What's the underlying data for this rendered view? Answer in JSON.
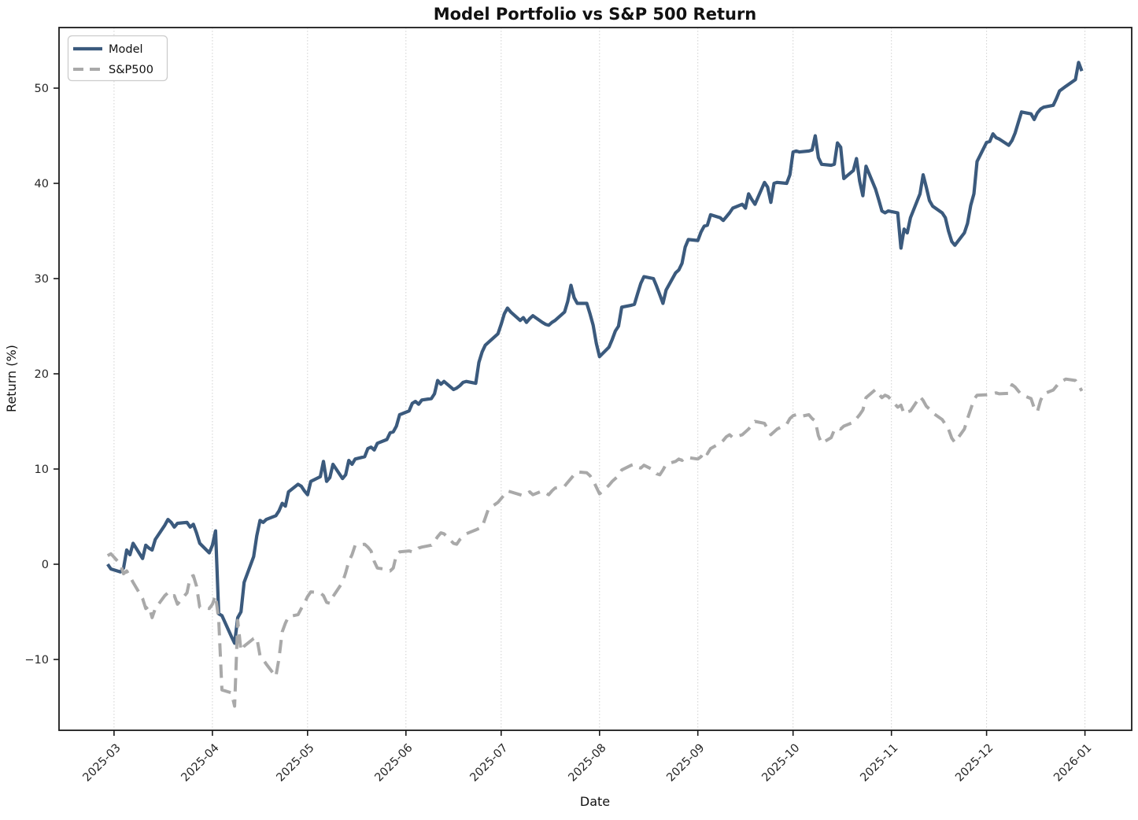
{
  "chart_data": {
    "type": "line",
    "title": "Model Portfolio vs S&P 500 Return",
    "xlabel": "Date",
    "ylabel": "Return (%)",
    "grid": "vertical-only",
    "legend_position": "upper left",
    "ylim": [
      -17.4,
      56.4
    ],
    "xlim": [
      "2025-02-12",
      "2026-01-15"
    ],
    "y_ticks": [
      {
        "label": "−10",
        "value": -10
      },
      {
        "label": "0",
        "value": 0
      },
      {
        "label": "10",
        "value": 10
      },
      {
        "label": "20",
        "value": 20
      },
      {
        "label": "30",
        "value": 30
      },
      {
        "label": "40",
        "value": 40
      },
      {
        "label": "50",
        "value": 50
      }
    ],
    "x_ticks": [
      {
        "label": "2025-03",
        "date": "2025-03-01"
      },
      {
        "label": "2025-04",
        "date": "2025-04-01"
      },
      {
        "label": "2025-05",
        "date": "2025-05-01"
      },
      {
        "label": "2025-06",
        "date": "2025-06-01"
      },
      {
        "label": "2025-07",
        "date": "2025-07-01"
      },
      {
        "label": "2025-08",
        "date": "2025-08-01"
      },
      {
        "label": "2025-09",
        "date": "2025-09-01"
      },
      {
        "label": "2025-10",
        "date": "2025-10-01"
      },
      {
        "label": "2025-11",
        "date": "2025-11-01"
      },
      {
        "label": "2025-12",
        "date": "2025-12-01"
      },
      {
        "label": "2026-01",
        "date": "2026-01-01"
      }
    ],
    "dates": [
      "2025-02-27",
      "2025-02-28",
      "2025-03-03",
      "2025-03-04",
      "2025-03-05",
      "2025-03-06",
      "2025-03-07",
      "2025-03-10",
      "2025-03-11",
      "2025-03-12",
      "2025-03-13",
      "2025-03-14",
      "2025-03-17",
      "2025-03-18",
      "2025-03-19",
      "2025-03-20",
      "2025-03-21",
      "2025-03-24",
      "2025-03-25",
      "2025-03-26",
      "2025-03-27",
      "2025-03-28",
      "2025-03-31",
      "2025-04-01",
      "2025-04-02",
      "2025-04-03",
      "2025-04-04",
      "2025-04-07",
      "2025-04-08",
      "2025-04-09",
      "2025-04-10",
      "2025-04-11",
      "2025-04-14",
      "2025-04-15",
      "2025-04-16",
      "2025-04-17",
      "2025-04-18",
      "2025-04-21",
      "2025-04-22",
      "2025-04-23",
      "2025-04-24",
      "2025-04-25",
      "2025-04-28",
      "2025-04-29",
      "2025-04-30",
      "2025-05-01",
      "2025-05-02",
      "2025-05-05",
      "2025-05-06",
      "2025-05-07",
      "2025-05-08",
      "2025-05-09",
      "2025-05-12",
      "2025-05-13",
      "2025-05-14",
      "2025-05-15",
      "2025-05-16",
      "2025-05-19",
      "2025-05-20",
      "2025-05-21",
      "2025-05-22",
      "2025-05-23",
      "2025-05-26",
      "2025-05-27",
      "2025-05-28",
      "2025-05-29",
      "2025-05-30",
      "2025-06-02",
      "2025-06-03",
      "2025-06-04",
      "2025-06-05",
      "2025-06-06",
      "2025-06-09",
      "2025-06-10",
      "2025-06-11",
      "2025-06-12",
      "2025-06-13",
      "2025-06-16",
      "2025-06-17",
      "2025-06-18",
      "2025-06-19",
      "2025-06-20",
      "2025-06-23",
      "2025-06-24",
      "2025-06-25",
      "2025-06-26",
      "2025-06-27",
      "2025-06-30",
      "2025-07-01",
      "2025-07-02",
      "2025-07-03",
      "2025-07-04",
      "2025-07-07",
      "2025-07-08",
      "2025-07-09",
      "2025-07-10",
      "2025-07-11",
      "2025-07-14",
      "2025-07-15",
      "2025-07-16",
      "2025-07-17",
      "2025-07-18",
      "2025-07-21",
      "2025-07-22",
      "2025-07-23",
      "2025-07-24",
      "2025-07-25",
      "2025-07-28",
      "2025-07-29",
      "2025-07-30",
      "2025-07-31",
      "2025-08-01",
      "2025-08-04",
      "2025-08-05",
      "2025-08-06",
      "2025-08-07",
      "2025-08-08",
      "2025-08-11",
      "2025-08-12",
      "2025-08-13",
      "2025-08-14",
      "2025-08-15",
      "2025-08-18",
      "2025-08-19",
      "2025-08-20",
      "2025-08-21",
      "2025-08-22",
      "2025-08-25",
      "2025-08-26",
      "2025-08-27",
      "2025-08-28",
      "2025-08-29",
      "2025-09-01",
      "2025-09-02",
      "2025-09-03",
      "2025-09-04",
      "2025-09-05",
      "2025-09-08",
      "2025-09-09",
      "2025-09-10",
      "2025-09-11",
      "2025-09-12",
      "2025-09-15",
      "2025-09-16",
      "2025-09-17",
      "2025-09-18",
      "2025-09-19",
      "2025-09-22",
      "2025-09-23",
      "2025-09-24",
      "2025-09-25",
      "2025-09-26",
      "2025-09-29",
      "2025-09-30",
      "2025-10-01",
      "2025-10-02",
      "2025-10-03",
      "2025-10-06",
      "2025-10-07",
      "2025-10-08",
      "2025-10-09",
      "2025-10-10",
      "2025-10-13",
      "2025-10-14",
      "2025-10-15",
      "2025-10-16",
      "2025-10-17",
      "2025-10-20",
      "2025-10-21",
      "2025-10-22",
      "2025-10-23",
      "2025-10-24",
      "2025-10-27",
      "2025-10-28",
      "2025-10-29",
      "2025-10-30",
      "2025-10-31",
      "2025-11-03",
      "2025-11-04",
      "2025-11-05",
      "2025-11-06",
      "2025-11-07",
      "2025-11-10",
      "2025-11-11",
      "2025-11-12",
      "2025-11-13",
      "2025-11-14",
      "2025-11-17",
      "2025-11-18",
      "2025-11-19",
      "2025-11-20",
      "2025-11-21",
      "2025-11-24",
      "2025-11-25",
      "2025-11-26",
      "2025-11-27",
      "2025-11-28",
      "2025-12-01",
      "2025-12-02",
      "2025-12-03",
      "2025-12-04",
      "2025-12-05",
      "2025-12-08",
      "2025-12-09",
      "2025-12-10",
      "2025-12-11",
      "2025-12-12",
      "2025-12-15",
      "2025-12-16",
      "2025-12-17",
      "2025-12-18",
      "2025-12-19",
      "2025-12-22",
      "2025-12-23",
      "2025-12-24",
      "2025-12-26",
      "2025-12-29",
      "2025-12-30",
      "2025-12-31"
    ],
    "series": [
      {
        "name": "Model",
        "color": "#3b5a7d",
        "style": "solid",
        "linewidth": 4.2,
        "values": [
          0.0,
          -0.5,
          -0.8,
          -0.4,
          1.5,
          1.0,
          2.2,
          0.6,
          2.0,
          1.7,
          1.5,
          2.6,
          4.1,
          4.7,
          4.4,
          3.9,
          4.3,
          4.4,
          3.9,
          4.2,
          3.3,
          2.2,
          1.2,
          2.0,
          3.5,
          -5.2,
          -5.4,
          -7.6,
          -8.3,
          -5.6,
          -5.0,
          -1.9,
          0.8,
          3.0,
          4.6,
          4.4,
          4.7,
          5.1,
          5.6,
          6.4,
          6.1,
          7.6,
          8.4,
          8.2,
          7.7,
          7.3,
          8.7,
          9.2,
          10.8,
          8.7,
          9.1,
          10.5,
          9.0,
          9.4,
          10.9,
          10.5,
          11.05,
          11.3,
          12.15,
          12.3,
          12.0,
          12.7,
          13.1,
          13.8,
          13.9,
          14.5,
          15.7,
          16.1,
          16.9,
          17.1,
          16.8,
          17.25,
          17.4,
          17.9,
          19.3,
          18.9,
          19.2,
          18.35,
          18.5,
          18.76,
          19.1,
          19.2,
          19.0,
          21.2,
          22.3,
          23.0,
          23.3,
          24.2,
          25.2,
          26.3,
          26.9,
          26.5,
          25.6,
          25.9,
          25.4,
          25.8,
          26.1,
          25.4,
          25.2,
          25.1,
          25.4,
          25.6,
          26.5,
          27.6,
          29.3,
          28.0,
          27.4,
          27.4,
          26.3,
          25.1,
          23.2,
          21.8,
          22.8,
          23.6,
          24.5,
          25.0,
          27.0,
          27.2,
          27.3,
          28.4,
          29.5,
          30.2,
          30.0,
          29.2,
          28.3,
          27.4,
          28.8,
          30.6,
          30.9,
          31.6,
          33.3,
          34.1,
          34.0,
          34.9,
          35.5,
          35.6,
          36.7,
          36.4,
          36.1,
          36.5,
          36.9,
          37.4,
          37.8,
          37.4,
          38.9,
          38.3,
          37.8,
          40.1,
          39.6,
          38.0,
          40.0,
          40.1,
          40.0,
          40.9,
          43.3,
          43.4,
          43.3,
          43.4,
          43.5,
          45.0,
          42.7,
          42.0,
          41.9,
          42.0,
          44.25,
          43.8,
          40.5,
          41.35,
          42.6,
          40.25,
          38.7,
          41.8,
          39.4,
          38.3,
          37.1,
          36.9,
          37.1,
          36.9,
          33.2,
          35.2,
          34.8,
          36.4,
          38.9,
          40.9,
          39.6,
          38.2,
          37.6,
          36.9,
          36.4,
          35.0,
          33.9,
          33.5,
          34.8,
          35.8,
          37.7,
          38.9,
          42.3,
          44.3,
          44.4,
          45.2,
          44.8,
          44.65,
          44.0,
          44.5,
          45.3,
          46.4,
          47.5,
          47.3,
          46.7,
          47.4,
          47.8,
          48.0,
          48.2,
          48.9,
          49.7,
          50.2,
          50.9,
          52.7,
          51.8
        ]
      },
      {
        "name": "S&P500",
        "color": "#a9a9a9",
        "style": "dashed",
        "linewidth": 4.0,
        "values": [
          0.9,
          1.1,
          0.0,
          -1.0,
          -0.7,
          -1.3,
          -1.9,
          -3.6,
          -4.65,
          -4.4,
          -5.6,
          -4.65,
          -3.3,
          -3.0,
          -3.4,
          -3.3,
          -4.2,
          -3.0,
          -1.35,
          -1.2,
          -2.3,
          -4.5,
          -4.65,
          -4.2,
          -3.3,
          -5.8,
          -13.2,
          -13.5,
          -14.9,
          -5.9,
          -9.1,
          -8.6,
          -7.8,
          -7.7,
          -9.6,
          -10.0,
          -10.5,
          -11.8,
          -9.9,
          -7.1,
          -6.2,
          -5.5,
          -5.3,
          -4.65,
          -4.1,
          -3.4,
          -2.9,
          -3.0,
          -3.3,
          -4.0,
          -4.1,
          -3.4,
          -1.9,
          -0.9,
          0.3,
          1.0,
          2.0,
          2.1,
          1.8,
          1.4,
          0.3,
          -0.4,
          -0.55,
          -0.7,
          -0.4,
          1.0,
          1.3,
          1.4,
          1.3,
          1.4,
          1.7,
          1.8,
          2.0,
          2.4,
          2.9,
          3.3,
          3.2,
          2.2,
          2.1,
          2.6,
          2.9,
          3.2,
          3.6,
          3.75,
          3.9,
          4.85,
          5.8,
          6.5,
          6.9,
          7.3,
          7.7,
          7.6,
          7.3,
          7.2,
          7.4,
          7.6,
          7.3,
          7.7,
          7.5,
          7.3,
          7.7,
          8.0,
          8.2,
          8.6,
          9.0,
          9.4,
          9.7,
          9.6,
          9.3,
          8.8,
          8.1,
          7.4,
          8.3,
          8.7,
          9.0,
          9.3,
          9.9,
          10.4,
          10.5,
          10.2,
          10.1,
          10.4,
          9.9,
          9.5,
          9.4,
          9.9,
          10.5,
          10.8,
          11.05,
          10.9,
          11.2,
          11.2,
          11.05,
          11.3,
          11.9,
          11.6,
          12.15,
          12.7,
          13.0,
          13.4,
          13.6,
          13.3,
          13.6,
          13.9,
          14.2,
          14.6,
          15.0,
          14.8,
          14.2,
          13.6,
          13.9,
          14.2,
          14.7,
          15.3,
          15.6,
          15.7,
          15.5,
          15.7,
          15.3,
          15.05,
          13.5,
          12.7,
          13.3,
          14.1,
          14.35,
          14.2,
          14.5,
          14.9,
          15.3,
          15.7,
          16.2,
          17.5,
          18.35,
          17.9,
          17.5,
          17.75,
          17.6,
          16.5,
          16.7,
          15.8,
          16.0,
          16.1,
          17.6,
          17.2,
          16.6,
          16.3,
          15.9,
          15.2,
          14.7,
          14.2,
          13.25,
          12.8,
          14.2,
          15.3,
          16.3,
          17.3,
          17.75,
          17.8,
          17.85,
          17.9,
          18.0,
          17.9,
          17.95,
          18.85,
          18.6,
          18.2,
          17.8,
          17.4,
          16.4,
          16.0,
          17.2,
          17.9,
          18.3,
          18.7,
          19.1,
          19.45,
          19.3,
          18.8,
          18.2
        ]
      }
    ]
  }
}
